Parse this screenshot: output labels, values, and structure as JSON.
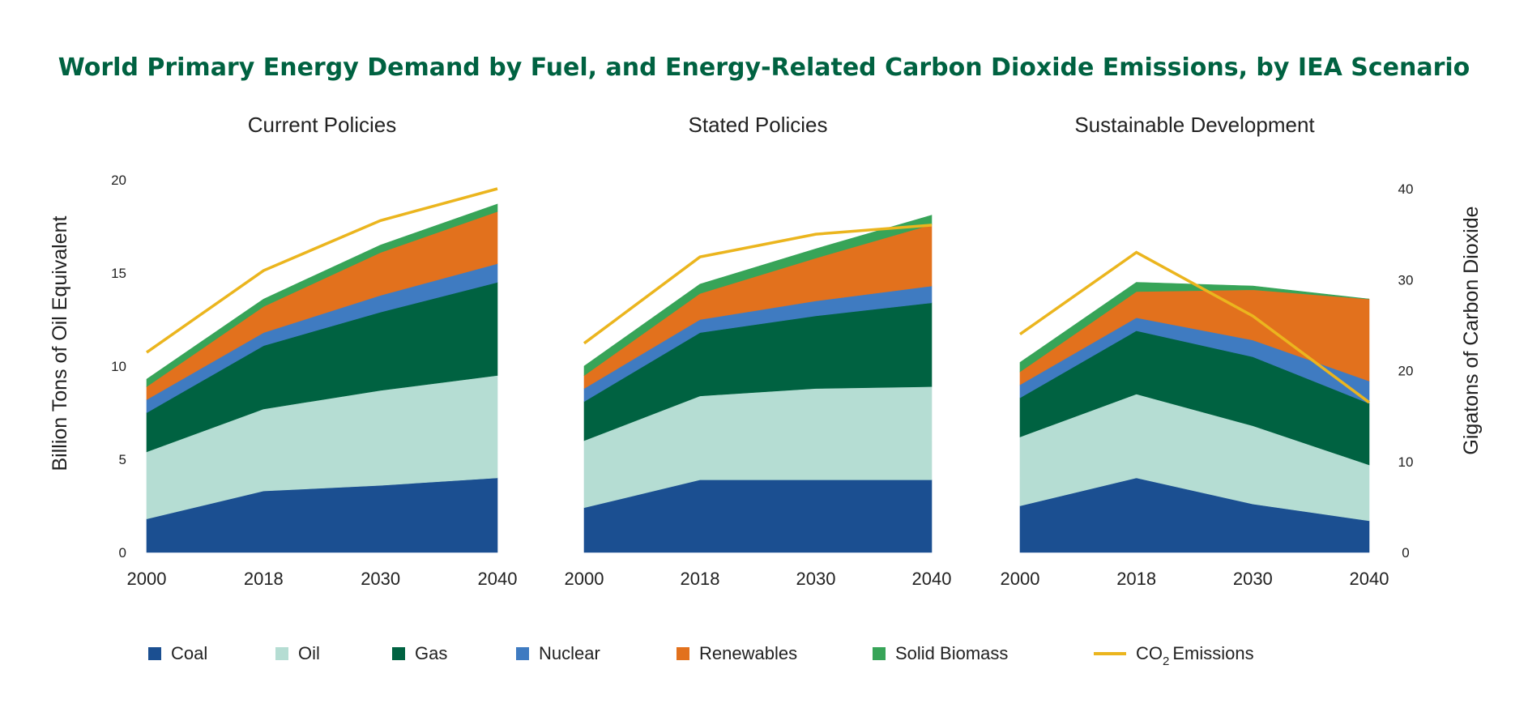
{
  "title": "World Primary Energy Demand by Fuel, and Energy-Related Carbon Dioxide Emissions, by IEA Scenario",
  "chart_data": {
    "type": "area",
    "title": "World Primary Energy Demand by Fuel, and Energy-Related Carbon Dioxide Emissions, by IEA Scenario",
    "ylabel_left": "Billion Tons of Oil Equivalent",
    "ylabel_right": "Gigatons of Carbon Dioxide",
    "ylim_left": [
      0,
      20
    ],
    "ylim_right": [
      0,
      40
    ],
    "yticks_left": [
      "0",
      "5",
      "10",
      "15",
      "20"
    ],
    "yticks_right": [
      "0",
      "10",
      "20",
      "30",
      "40"
    ],
    "x": [
      "2000",
      "2018",
      "2030",
      "2040"
    ],
    "fuels": [
      {
        "key": "coal",
        "name": "Coal",
        "color": "#1b4f91"
      },
      {
        "key": "oil",
        "name": "Oil",
        "color": "#b5ddd3"
      },
      {
        "key": "gas",
        "name": "Gas",
        "color": "#006241"
      },
      {
        "key": "nuclear",
        "name": "Nuclear",
        "color": "#3f7bc1"
      },
      {
        "key": "renewables",
        "name": "Renewables",
        "color": "#e2711d"
      },
      {
        "key": "biomass",
        "name": "Solid Biomass",
        "color": "#37a458"
      }
    ],
    "co2_series": {
      "name": "CO",
      "sub": "2",
      "suffix": "Emissions",
      "color": "#ebb51e"
    },
    "panels": [
      {
        "title": "Current Policies",
        "coal": [
          1.8,
          3.3,
          3.6,
          4.0
        ],
        "oil": [
          3.6,
          4.4,
          5.1,
          5.5
        ],
        "gas": [
          2.1,
          3.4,
          4.2,
          5.0
        ],
        "nuclear": [
          0.7,
          0.7,
          0.9,
          1.0
        ],
        "renewables": [
          0.7,
          1.4,
          2.3,
          2.8
        ],
        "biomass": [
          0.4,
          0.4,
          0.4,
          0.4
        ],
        "co2": [
          22.0,
          31.0,
          36.5,
          40.0
        ]
      },
      {
        "title": "Stated Policies",
        "coal": [
          2.4,
          3.9,
          3.9,
          3.9
        ],
        "oil": [
          3.6,
          4.5,
          4.9,
          5.0
        ],
        "gas": [
          2.1,
          3.4,
          3.9,
          4.5
        ],
        "nuclear": [
          0.7,
          0.7,
          0.8,
          0.9
        ],
        "renewables": [
          0.7,
          1.4,
          2.3,
          3.3
        ],
        "biomass": [
          0.5,
          0.5,
          0.5,
          0.5
        ],
        "co2": [
          23.0,
          32.5,
          35.0,
          36.0
        ]
      },
      {
        "title": "Sustainable Development",
        "coal": [
          2.5,
          4.0,
          2.6,
          1.7
        ],
        "oil": [
          3.7,
          4.5,
          4.2,
          3.0
        ],
        "gas": [
          2.1,
          3.4,
          3.7,
          3.3
        ],
        "nuclear": [
          0.7,
          0.7,
          0.9,
          1.2
        ],
        "renewables": [
          0.7,
          1.4,
          2.7,
          4.4
        ],
        "biomass": [
          0.5,
          0.5,
          0.2,
          0.0
        ],
        "co2": [
          24.0,
          33.0,
          26.0,
          16.5
        ]
      }
    ]
  }
}
